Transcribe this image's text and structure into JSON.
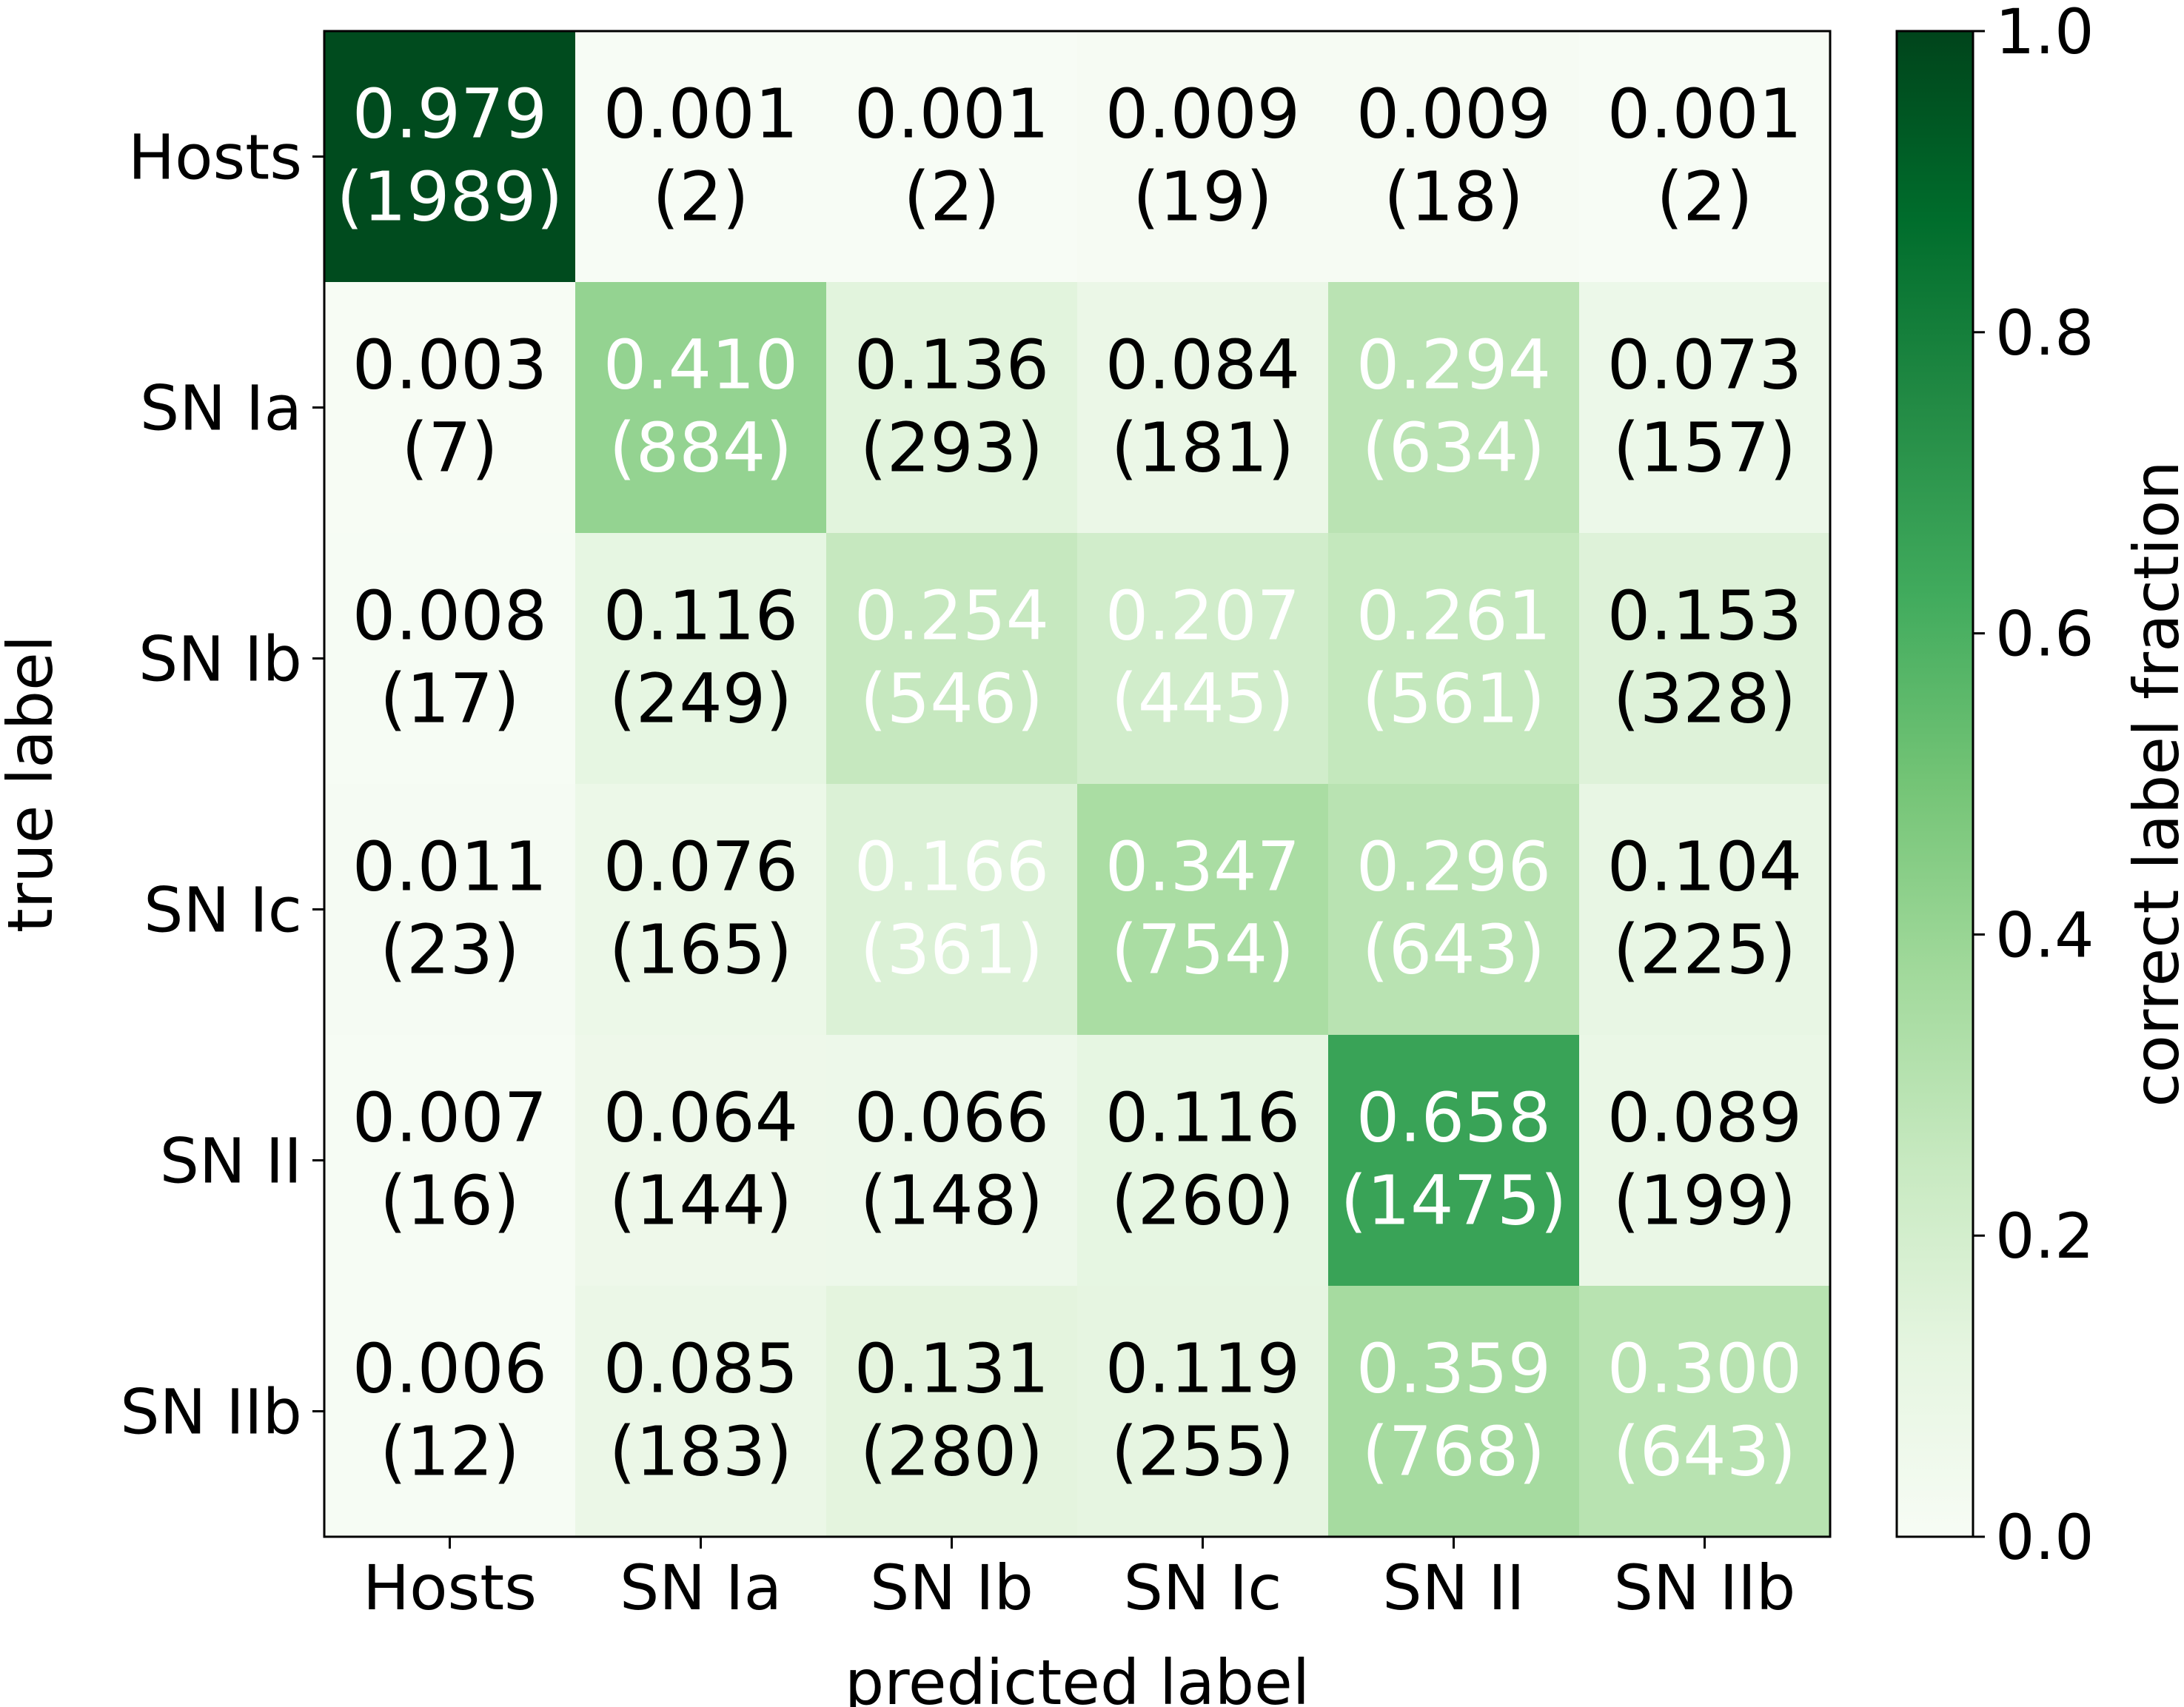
{
  "chart_data": {
    "type": "heatmap",
    "title": "",
    "xlabel": "predicted label",
    "ylabel": "true label",
    "x_categories": [
      "Hosts",
      "SN Ia",
      "SN Ib",
      "SN Ic",
      "SN II",
      "SN IIb"
    ],
    "y_categories": [
      "Hosts",
      "SN Ia",
      "SN Ib",
      "SN Ic",
      "SN II",
      "SN IIb"
    ],
    "fractions": [
      [
        0.979,
        0.001,
        0.001,
        0.009,
        0.009,
        0.001
      ],
      [
        0.003,
        0.41,
        0.136,
        0.084,
        0.294,
        0.073
      ],
      [
        0.008,
        0.116,
        0.254,
        0.207,
        0.261,
        0.153
      ],
      [
        0.011,
        0.076,
        0.166,
        0.347,
        0.296,
        0.104
      ],
      [
        0.007,
        0.064,
        0.066,
        0.116,
        0.658,
        0.089
      ],
      [
        0.006,
        0.085,
        0.131,
        0.119,
        0.359,
        0.3
      ]
    ],
    "cell_text": [
      [
        [
          "0.979",
          "(1989)"
        ],
        [
          "0.001",
          "(2)"
        ],
        [
          "0.001",
          "(2)"
        ],
        [
          "0.009",
          "(19)"
        ],
        [
          "0.009",
          "(18)"
        ],
        [
          "0.001",
          "(2)"
        ]
      ],
      [
        [
          "0.003",
          "(7)"
        ],
        [
          "0.410",
          "(884)"
        ],
        [
          "0.136",
          "(293)"
        ],
        [
          "0.084",
          "(181)"
        ],
        [
          "0.294",
          "(634)"
        ],
        [
          "0.073",
          "(157)"
        ]
      ],
      [
        [
          "0.008",
          "(17)"
        ],
        [
          "0.116",
          "(249)"
        ],
        [
          "0.254",
          "(546)"
        ],
        [
          "0.207",
          "(445)"
        ],
        [
          "0.261",
          "(561)"
        ],
        [
          "0.153",
          "(328)"
        ]
      ],
      [
        [
          "0.011",
          "(23)"
        ],
        [
          "0.076",
          "(165)"
        ],
        [
          "0.166",
          "(361)"
        ],
        [
          "0.347",
          "(754)"
        ],
        [
          "0.296",
          "(643)"
        ],
        [
          "0.104",
          "(225)"
        ]
      ],
      [
        [
          "0.007",
          "(16)"
        ],
        [
          "0.064",
          "(144)"
        ],
        [
          "0.066",
          "(148)"
        ],
        [
          "0.116",
          "(260)"
        ],
        [
          "0.658",
          "(1475)"
        ],
        [
          "0.089",
          "(199)"
        ]
      ],
      [
        [
          "0.006",
          "(12)"
        ],
        [
          "0.085",
          "(183)"
        ],
        [
          "0.131",
          "(280)"
        ],
        [
          "0.119",
          "(255)"
        ],
        [
          "0.359",
          "(768)"
        ],
        [
          "0.300",
          "(643)"
        ]
      ]
    ],
    "colorbar": {
      "label": "correct label fraction",
      "range": [
        0.0,
        1.0
      ],
      "ticks": [
        "0.0",
        "0.2",
        "0.4",
        "0.6",
        "0.8",
        "1.0"
      ],
      "colormap": "Greens",
      "color_stops": [
        "#f7fcf5",
        "#e5f5e0",
        "#c7e9c0",
        "#a1d99b",
        "#74c476",
        "#41ab5d",
        "#238b45",
        "#006d2c",
        "#00441b"
      ]
    },
    "text_colors": {
      "light": "#ffffff",
      "dark": "#000000"
    },
    "text_color_threshold": 0.16,
    "grid": false,
    "legend": "colorbar-right"
  }
}
